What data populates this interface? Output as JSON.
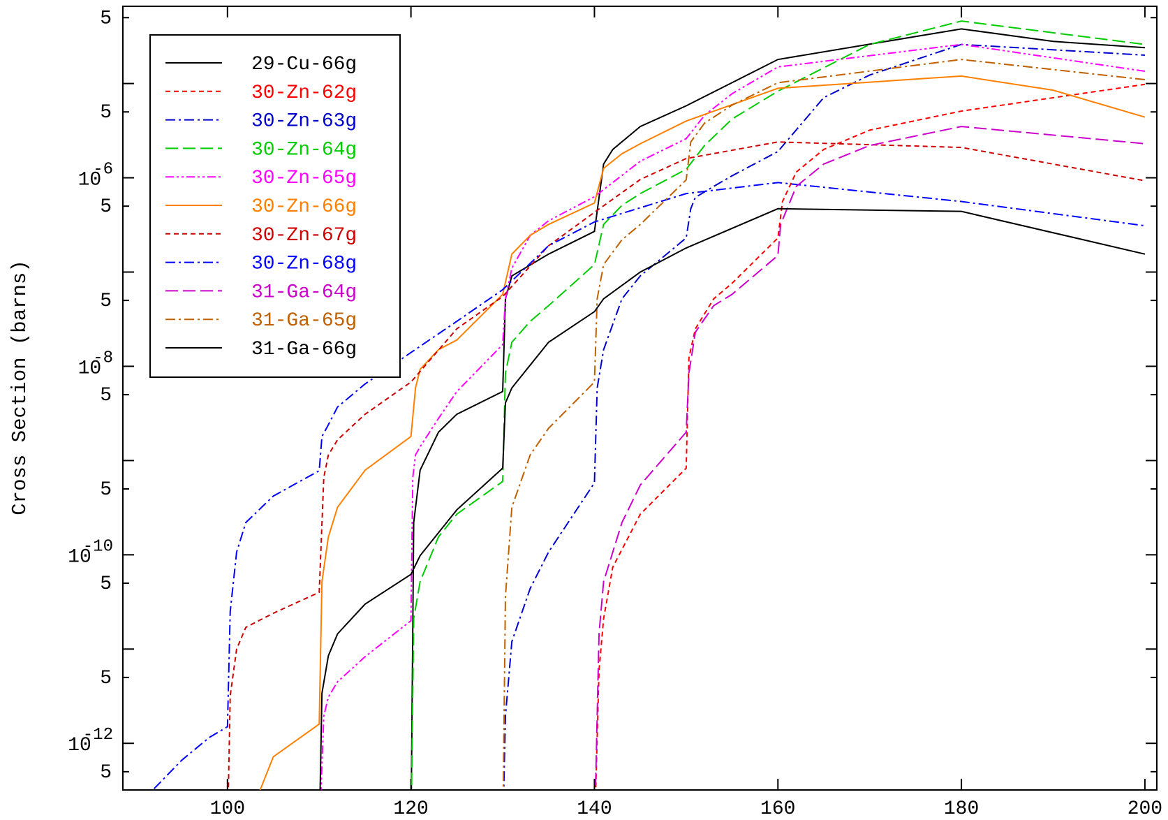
{
  "chart_data": {
    "type": "line",
    "ylabel": "Cross Section (barns)",
    "log_y": true,
    "xlim": [
      88.6,
      201.3
    ],
    "ylim": [
      3.2e-13,
      6.6e-05
    ],
    "xticks": [
      100,
      120,
      140,
      160,
      180,
      200
    ],
    "yticks": [
      {
        "value": 5e-05,
        "label": "5"
      },
      {
        "value": 1e-05,
        "label": null
      },
      {
        "value": 5e-06,
        "label": "5"
      },
      {
        "value": 1e-06,
        "label": [
          "10",
          "-6"
        ]
      },
      {
        "value": 5e-07,
        "label": "5"
      },
      {
        "value": 1e-07,
        "label": null
      },
      {
        "value": 5e-08,
        "label": "5"
      },
      {
        "value": 1e-08,
        "label": [
          "10",
          "-8"
        ]
      },
      {
        "value": 5e-09,
        "label": "5"
      },
      {
        "value": 1e-09,
        "label": null
      },
      {
        "value": 5e-10,
        "label": "5"
      },
      {
        "value": 1e-10,
        "label": [
          "10",
          "-10"
        ]
      },
      {
        "value": 5e-11,
        "label": "5"
      },
      {
        "value": 1e-11,
        "label": null
      },
      {
        "value": 5e-12,
        "label": "5"
      },
      {
        "value": 1e-12,
        "label": [
          "10",
          "-12"
        ]
      },
      {
        "value": 5e-13,
        "label": "5"
      }
    ],
    "legend": "upper left",
    "series": [
      {
        "name": "29-Cu-66g",
        "color": "#000000",
        "linestyle": "solid",
        "x": [
          120,
          120.3,
          121,
          123,
          125,
          130,
          130.3,
          131,
          135,
          140,
          141,
          142,
          145,
          150,
          160,
          180,
          190,
          200
        ],
        "values": [
          1e-13,
          2.2e-10,
          7.9e-10,
          2e-09,
          3.1e-09,
          5.4e-09,
          5.2e-08,
          9.1e-08,
          1.55e-07,
          2.7e-07,
          1.4e-06,
          2e-06,
          3.5e-06,
          5.8e-06,
          1.8e-05,
          3.8e-05,
          2.8e-05,
          2.4e-05
        ]
      },
      {
        "name": "30-Zn-62g",
        "color": "#ff0000",
        "linestyle": "dashed",
        "x": [
          140,
          140.5,
          141,
          142,
          145,
          150,
          150.3,
          151,
          153,
          155,
          160,
          160.5,
          162,
          165,
          170,
          180,
          200
        ],
        "values": [
          1e-13,
          5.9e-12,
          2.1e-11,
          7.4e-11,
          2.7e-10,
          8.3e-10,
          1.23e-08,
          2.5e-08,
          5.2e-08,
          7.6e-08,
          2.3e-07,
          5.6e-07,
          1.15e-06,
          2e-06,
          3.2e-06,
          5.1e-06,
          9.8e-06
        ]
      },
      {
        "name": "30-Zn-63g",
        "color": "#0000cc",
        "linestyle": "dashdot",
        "x": [
          130,
          130.3,
          131,
          133,
          135,
          140,
          140.3,
          141,
          143,
          145,
          150,
          150.5,
          151,
          153,
          155,
          160,
          165,
          170,
          180,
          200
        ],
        "values": [
          1e-13,
          1.95e-12,
          1.2e-11,
          4.4e-11,
          1.07e-10,
          5.8e-10,
          5.9e-09,
          1.5e-08,
          5.2e-08,
          9.1e-08,
          2.3e-07,
          4.7e-07,
          6.2e-07,
          8.1e-07,
          1.05e-06,
          1.9e-06,
          7.1e-06,
          1.23e-05,
          2.6e-05,
          2e-05
        ]
      },
      {
        "name": "30-Zn-64g",
        "color": "#00cc00",
        "linestyle": "longdash",
        "x": [
          120,
          120.3,
          121,
          123,
          125,
          130,
          130.3,
          131,
          133,
          135,
          140,
          141,
          143,
          145,
          150,
          152,
          155,
          160,
          170,
          180,
          200
        ],
        "values": [
          1e-13,
          2.1e-11,
          5.2e-11,
          1.55e-10,
          2.7e-10,
          6e-10,
          8.5e-09,
          1.8e-08,
          3e-08,
          4.4e-08,
          1.2e-07,
          3.2e-07,
          5.1e-07,
          6.8e-07,
          1.23e-06,
          2.2e-06,
          4.2e-06,
          8.3e-06,
          2.6e-05,
          4.6e-05,
          2.6e-05
        ]
      },
      {
        "name": "30-Zn-65g",
        "color": "#ff00ff",
        "linestyle": "dashdotdot",
        "x": [
          110,
          110.5,
          111,
          112,
          115,
          120,
          120.2,
          120.5,
          121,
          123,
          125,
          130,
          130.3,
          131,
          133,
          135,
          140,
          145,
          150,
          152,
          155,
          160,
          180,
          200
        ],
        "values": [
          1e-13,
          1.95e-12,
          3.1e-12,
          4.5e-12,
          8.3e-12,
          2e-11,
          6.6e-10,
          1.15e-09,
          1.4e-09,
          2.8e-09,
          5.4e-09,
          1.7e-08,
          5.2e-08,
          1.1e-07,
          2.45e-07,
          3.5e-07,
          6.3e-07,
          1.5e-06,
          2.6e-06,
          4.6e-06,
          7.8e-06,
          1.5e-05,
          2.6e-05,
          1.35e-05
        ]
      },
      {
        "name": "30-Zn-66g",
        "color": "#ff8000",
        "linestyle": "solid",
        "x": [
          101.5,
          105,
          110,
          110.3,
          111,
          112,
          115,
          120,
          120.5,
          121,
          123,
          125,
          130,
          131,
          133,
          135,
          140,
          141,
          143,
          145,
          150,
          160,
          180,
          190,
          200
        ],
        "values": [
          1e-13,
          7.2e-13,
          1.6e-12,
          5.2e-11,
          1.55e-10,
          3.2e-10,
          7.9e-10,
          1.8e-09,
          5.9e-09,
          9.3e-09,
          1.5e-08,
          1.9e-08,
          5.8e-08,
          1.55e-07,
          2.45e-07,
          3.2e-07,
          5.4e-07,
          1.26e-06,
          1.8e-06,
          2.3e-06,
          4e-06,
          8.9e-06,
          1.2e-05,
          8.5e-06,
          4.4e-06
        ]
      },
      {
        "name": "30-Zn-67g",
        "color": "#cc0000",
        "linestyle": "dashed",
        "x": [
          100,
          100.3,
          101,
          102,
          105,
          110,
          110.5,
          111,
          112,
          115,
          120,
          125,
          130,
          135,
          140,
          145,
          150,
          160,
          180,
          200
        ],
        "values": [
          1e-13,
          3.2e-12,
          1e-11,
          1.7e-11,
          2.4e-11,
          4e-11,
          6.6e-10,
          1.15e-09,
          1.66e-09,
          3.1e-09,
          6.8e-09,
          2.5e-08,
          5.5e-08,
          1.9e-07,
          4.3e-07,
          9.6e-07,
          1.6e-06,
          2.4e-06,
          2.1e-06,
          9.3e-07
        ]
      },
      {
        "name": "30-Zn-68g",
        "color": "#0000ff",
        "linestyle": "dashdot",
        "x": [
          92,
          95,
          98,
          100,
          100.3,
          101,
          102,
          105,
          110,
          110.3,
          111,
          112,
          115,
          120,
          125,
          130,
          135,
          140,
          150,
          160,
          180,
          200
        ],
        "values": [
          3.3e-13,
          6.6e-13,
          1.15e-12,
          1.5e-12,
          2.5e-11,
          1.07e-10,
          2.2e-10,
          4.2e-10,
          7.8e-10,
          1.8e-09,
          2.4e-09,
          3.7e-09,
          6.5e-09,
          1.4e-08,
          3e-08,
          6.5e-08,
          1.9e-07,
          3.4e-07,
          6.8e-07,
          8.9e-07,
          5.6e-07,
          3.1e-07
        ]
      },
      {
        "name": "31-Ga-64g",
        "color": "#cc00cc",
        "linestyle": "longdash",
        "x": [
          140,
          140.5,
          141,
          143,
          145,
          150,
          150.3,
          151,
          153,
          155,
          160,
          160.3,
          162,
          165,
          170,
          180,
          200
        ],
        "values": [
          1e-13,
          1.45e-11,
          5.2e-11,
          2.2e-10,
          5.5e-10,
          2e-09,
          8.5e-09,
          2.3e-08,
          4.4e-08,
          5.8e-08,
          1.5e-07,
          3.2e-07,
          8.1e-07,
          1.4e-06,
          2.2e-06,
          3.5e-06,
          2.3e-06
        ]
      },
      {
        "name": "31-Ga-65g",
        "color": "#c06000",
        "linestyle": "dashdot",
        "x": [
          130,
          130.3,
          131,
          133,
          135,
          140,
          140.3,
          141,
          143,
          145,
          150,
          150.5,
          152,
          155,
          160,
          180,
          200
        ],
        "values": [
          1e-13,
          3.6e-11,
          3.2e-10,
          1.15e-09,
          2.2e-09,
          6.8e-09,
          5.2e-08,
          1.2e-07,
          2.2e-07,
          3.2e-07,
          9.5e-07,
          2.4e-06,
          3.8e-06,
          5.9e-06,
          1.02e-05,
          1.8e-05,
          1.1e-05
        ]
      },
      {
        "name": "31-Ga-66g",
        "color": "#000000",
        "linestyle": "solid",
        "x": [
          110,
          110.3,
          111,
          112,
          115,
          120,
          121,
          125,
          130,
          130.3,
          131,
          135,
          140,
          141,
          145,
          150,
          160,
          180,
          200
        ],
        "values": [
          1e-13,
          3.4e-12,
          8.5e-12,
          1.45e-11,
          3e-11,
          6.2e-11,
          9.8e-11,
          3e-10,
          8.3e-10,
          4.1e-09,
          5.9e-09,
          1.8e-08,
          3.8e-08,
          5.2e-08,
          1e-07,
          1.8e-07,
          4.7e-07,
          4.4e-07,
          1.55e-07
        ]
      }
    ]
  }
}
